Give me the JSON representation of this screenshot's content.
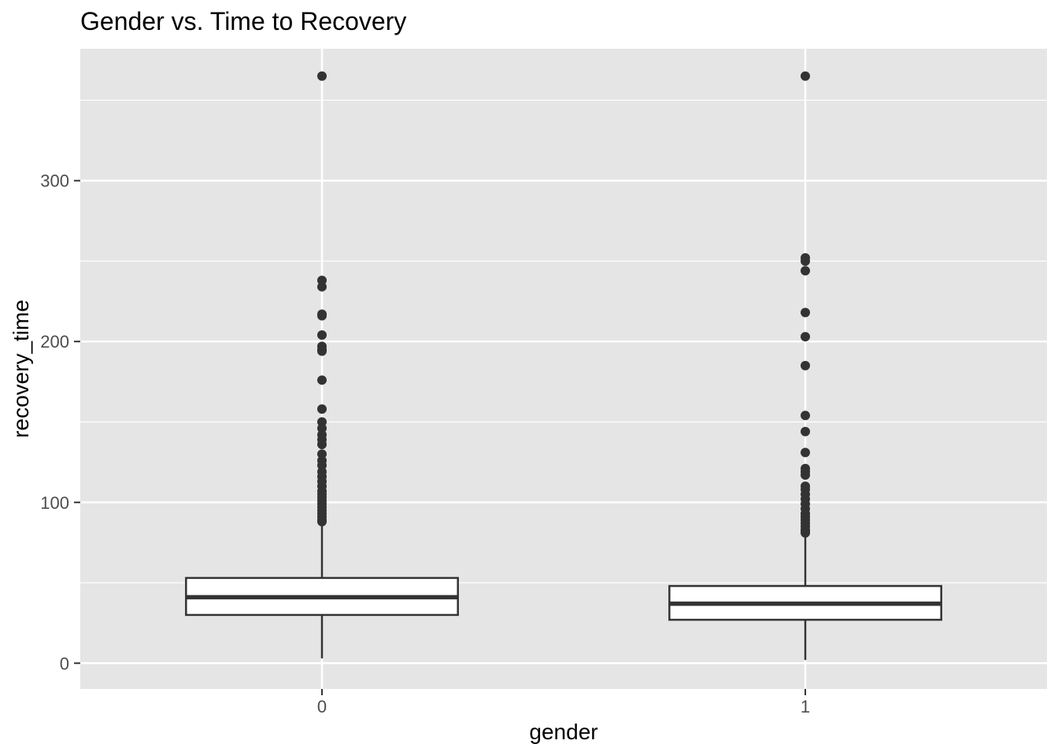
{
  "chart_data": {
    "type": "box",
    "title": "Gender vs. Time to Recovery",
    "xlabel": "gender",
    "ylabel": "recovery_time",
    "categories": [
      "0",
      "1"
    ],
    "ylim": [
      -16,
      382
    ],
    "yticks": [
      0,
      100,
      200,
      300
    ],
    "grid": true,
    "legend": "none",
    "boxes": [
      {
        "category": "0",
        "whisker_low": 3,
        "q1": 30,
        "median": 41,
        "q3": 53,
        "whisker_high": 87,
        "outliers": [
          365,
          238,
          234,
          217,
          216,
          204,
          197,
          195,
          194,
          176,
          158,
          150,
          146,
          142,
          139,
          136,
          130,
          126,
          123,
          119,
          116,
          113,
          110,
          107,
          105,
          103,
          101,
          99,
          97,
          95,
          93,
          91,
          89,
          88
        ]
      },
      {
        "category": "1",
        "whisker_low": 2,
        "q1": 27,
        "median": 37,
        "q3": 48,
        "whisker_high": 80,
        "outliers": [
          365,
          252,
          250,
          244,
          218,
          203,
          185,
          154,
          144,
          131,
          121,
          119,
          117,
          110,
          108,
          105,
          102,
          99,
          96,
          93,
          91,
          89,
          87,
          85,
          83,
          82,
          81
        ]
      }
    ],
    "colors": {
      "panel": "#E5E5E5",
      "grid_major": "#FFFFFF",
      "box_fill": "#FFFFFF",
      "box_line": "#333333",
      "point": "#333333"
    }
  }
}
